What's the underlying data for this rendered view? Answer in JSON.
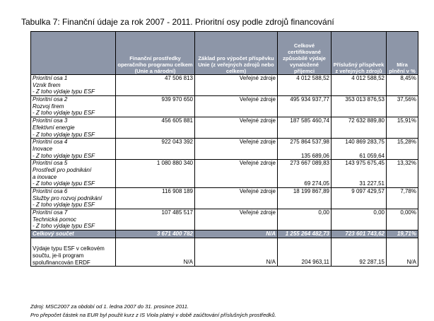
{
  "caption": "Tabulka 7: Finanční údaje za rok 2007 - 2011. Prioritní osy podle zdrojů financování",
  "headers": [
    "",
    "Finanční prostředky operačního programu celkem (Unie a národní)",
    "Základ pro výpočet příspěvku Unie (z veřejných zdrojů nebo celkem)",
    "Celkové certifikované způsobilé výdaje vynaložené příjemci",
    "Příslušný příspěvek z veřejných zdrojů",
    "Míra plnění v %"
  ],
  "rows": [
    {
      "label": [
        "Prioritní osa 1",
        "Vznik firem",
        "- Z toho výdaje typu ESF"
      ],
      "c2": [
        "47 506 813"
      ],
      "c3": [
        "Veřejné zdroje"
      ],
      "c4": [
        "4 012 588,52"
      ],
      "c5": [
        "4 012 588,52"
      ],
      "c6": [
        "8,45%"
      ]
    },
    {
      "label": [
        "Prioritní osa 2",
        "Rozvoj firem",
        "- Z toho výdaje typu ESF"
      ],
      "c2": [
        "939 970 650"
      ],
      "c3": [
        "Veřejné zdroje"
      ],
      "c4": [
        "495 934 937,77"
      ],
      "c5": [
        "353 013 876,53"
      ],
      "c6": [
        "37,56%"
      ]
    },
    {
      "label": [
        "Prioritní osa 3",
        "Efektivní energie",
        "- Z toho výdaje typu ESF"
      ],
      "c2": [
        "456 605 881"
      ],
      "c3": [
        "Veřejné zdroje"
      ],
      "c4": [
        "187 585 460,74"
      ],
      "c5": [
        "72 632 889,80"
      ],
      "c6": [
        "15,91%"
      ]
    },
    {
      "label": [
        "Prioritní osa 4",
        "Inovace",
        "- Z toho výdaje typu ESF"
      ],
      "c2": [
        "922 043 392"
      ],
      "c3": [
        "Veřejné zdroje"
      ],
      "c4": [
        "275 864 537,98",
        "",
        "135 689,06"
      ],
      "c5": [
        "140 869 283,75",
        "",
        "61 059,64"
      ],
      "c6": [
        "15,28%"
      ]
    },
    {
      "label": [
        "Prioritní osa 5",
        "Prostředí pro podnikání",
        "a inovace",
        "- Z toho výdaje typu ESF"
      ],
      "c2": [
        "1 080 880 340"
      ],
      "c3": [
        "Veřejné zdroje"
      ],
      "c4": [
        "273 667 089,83",
        "",
        "",
        "69 274,05"
      ],
      "c5": [
        "143 975 675,45",
        "",
        "",
        "31 227,51"
      ],
      "c6": [
        "13,32%"
      ]
    },
    {
      "label": [
        "Prioritní osa 6",
        "Služby pro rozvoj podnikání",
        "- Z toho výdaje typu ESF"
      ],
      "c2": [
        "116 908 189"
      ],
      "c3": [
        "Veřejné zdroje"
      ],
      "c4": [
        "18 199 867,89"
      ],
      "c5": [
        "9 097 429,57"
      ],
      "c6": [
        "7,78%"
      ]
    },
    {
      "label": [
        "Prioritní osa 7",
        "Technická pomoc",
        "- Z toho výdaje typu ESF"
      ],
      "c2": [
        "107 485 517"
      ],
      "c3": [
        "Veřejné zdroje"
      ],
      "c4": [
        "0,00"
      ],
      "c5": [
        "0,00"
      ],
      "c6": [
        "0,00%"
      ]
    }
  ],
  "total": {
    "label": "Celkový součet",
    "c2": "3 671 400 782",
    "c3": "N/A",
    "c4": "1 255 264 482,73",
    "c5": "723 601 743,62",
    "c6": "19,71%"
  },
  "esf": {
    "label": [
      "Výdaje typu ESF v celkovém",
      "součtu, je-li program",
      "spolufinancován ERDF"
    ],
    "c2": "N/A",
    "c3": "N/A",
    "c4": "204 963,11",
    "c5": "92 287,15",
    "c6": "N/A"
  },
  "footnotes": [
    "Zdroj: MSC2007 za období od 1. ledna 2007 do 31. prosince 2011.",
    "Pro přepočet částek na EUR byl použit kurz z IS Viola platný v době zaúčtování příslušných prostředků."
  ]
}
